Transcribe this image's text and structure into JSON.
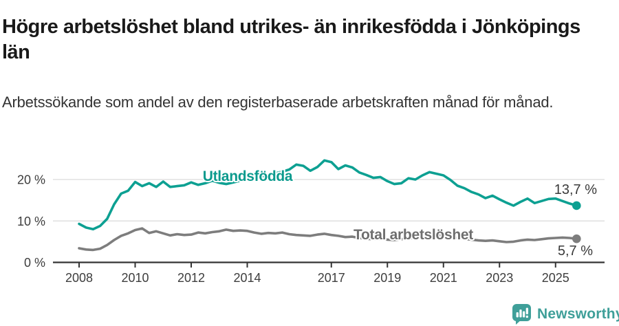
{
  "header": {
    "title": "Högre arbetslöshet bland utrikes- än inrikesfödda i Jönköpings län",
    "subtitle": "Arbetssökande som andel av den registerbaserade arbetskraften månad för månad."
  },
  "chart_data": {
    "type": "line",
    "title": "Högre arbetslöshet bland utrikes- än inrikesfödda i Jönköpings län",
    "subtitle": "Arbetssökande som andel av den registerbaserade arbetskraften månad för månad.",
    "xlabel": "",
    "ylabel": "",
    "grid": true,
    "legend_position": "inline-labels-on-lines",
    "xlim": [
      2007.1,
      2026.8
    ],
    "ylim": [
      0,
      30
    ],
    "x_ticks": [
      2008,
      2010,
      2012,
      2014,
      2017,
      2019,
      2021,
      2023,
      2025
    ],
    "x_tick_labels": [
      "2008",
      "2010",
      "2012",
      "2014",
      "2017",
      "2019",
      "2021",
      "2023",
      "2025"
    ],
    "y_ticks": [
      0,
      10,
      20
    ],
    "y_tick_labels": [
      "0 %",
      "10 %",
      "20 %"
    ],
    "x": [
      2008,
      2008.25,
      2008.5,
      2008.75,
      2009,
      2009.25,
      2009.5,
      2009.75,
      2010,
      2010.25,
      2010.5,
      2010.75,
      2011,
      2011.25,
      2011.5,
      2011.75,
      2012,
      2012.25,
      2012.5,
      2012.75,
      2013,
      2013.25,
      2013.5,
      2013.75,
      2014,
      2014.25,
      2014.5,
      2014.75,
      2015,
      2015.25,
      2015.5,
      2015.75,
      2016,
      2016.25,
      2016.5,
      2016.75,
      2017,
      2017.25,
      2017.5,
      2017.75,
      2018,
      2018.25,
      2018.5,
      2018.75,
      2019,
      2019.25,
      2019.5,
      2019.75,
      2020,
      2020.25,
      2020.5,
      2020.75,
      2021,
      2021.25,
      2021.5,
      2021.75,
      2022,
      2022.25,
      2022.5,
      2022.75,
      2023,
      2023.25,
      2023.5,
      2023.75,
      2024,
      2024.25,
      2024.5,
      2024.75,
      2025,
      2025.25,
      2025.5,
      2025.75
    ],
    "series": [
      {
        "name": "Utlandsfödda",
        "color": "#0da092",
        "label_color": "#0b9a8d",
        "end_label": "13,7 %",
        "last_value": 13.7,
        "values": [
          9.3,
          8.4,
          8.0,
          8.8,
          10.5,
          14.0,
          16.6,
          17.3,
          19.4,
          18.4,
          19.1,
          18.2,
          19.5,
          18.2,
          18.4,
          18.6,
          19.3,
          18.7,
          19.1,
          19.7,
          19.2,
          18.9,
          19.3,
          19.7,
          20.0,
          20.3,
          20.7,
          21.1,
          21.5,
          21.9,
          22.4,
          23.6,
          23.3,
          22.1,
          23.0,
          24.6,
          24.2,
          22.5,
          23.4,
          22.9,
          21.7,
          21.1,
          20.4,
          20.6,
          19.6,
          18.9,
          19.1,
          20.3,
          20.0,
          21.0,
          21.8,
          21.4,
          21.0,
          19.9,
          18.5,
          17.9,
          17.0,
          16.4,
          15.5,
          16.1,
          15.2,
          14.4,
          13.7,
          14.6,
          15.4,
          14.3,
          14.8,
          15.3,
          15.4,
          14.8,
          14.2,
          13.7
        ]
      },
      {
        "name": "Total arbetslöshet",
        "color": "#7d7d7d",
        "label_color": "#6e6e6e",
        "end_label": "5,7 %",
        "last_value": 5.7,
        "values": [
          3.4,
          3.1,
          3.0,
          3.3,
          4.2,
          5.4,
          6.4,
          7.0,
          7.8,
          8.2,
          7.1,
          7.5,
          7.0,
          6.5,
          6.8,
          6.6,
          6.7,
          7.2,
          7.0,
          7.3,
          7.5,
          7.9,
          7.6,
          7.7,
          7.6,
          7.2,
          6.9,
          7.1,
          7.0,
          7.2,
          6.8,
          6.6,
          6.5,
          6.4,
          6.7,
          6.9,
          6.6,
          6.4,
          6.1,
          6.2,
          5.9,
          5.7,
          5.6,
          5.7,
          5.5,
          5.4,
          5.6,
          5.8,
          5.9,
          6.5,
          6.9,
          6.7,
          6.5,
          6.2,
          5.9,
          5.7,
          5.5,
          5.3,
          5.2,
          5.3,
          5.1,
          4.9,
          5.0,
          5.3,
          5.5,
          5.4,
          5.6,
          5.8,
          5.9,
          6.0,
          5.9,
          5.7
        ]
      }
    ],
    "colors": {
      "grid": "#d9d9d9",
      "axis": "#333333",
      "tick_text": "#3d3d3d"
    }
  },
  "branding": {
    "logo_text": "Newsworthy",
    "logo_color": "#3f9f99"
  }
}
